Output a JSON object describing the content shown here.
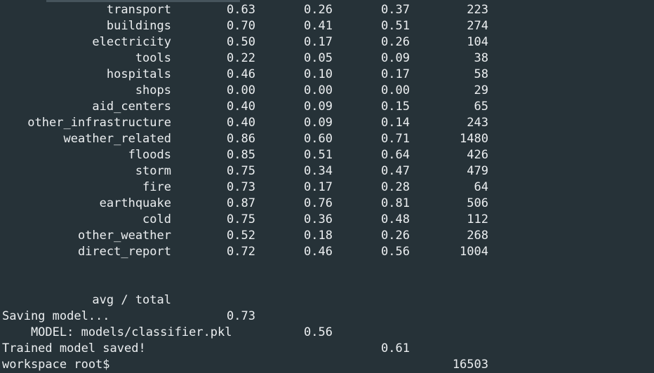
{
  "report": {
    "rows": [
      {
        "label": "transport",
        "precision": "0.63",
        "recall": "0.26",
        "f1": "0.37",
        "support": "223"
      },
      {
        "label": "buildings",
        "precision": "0.70",
        "recall": "0.41",
        "f1": "0.51",
        "support": "274"
      },
      {
        "label": "electricity",
        "precision": "0.50",
        "recall": "0.17",
        "f1": "0.26",
        "support": "104"
      },
      {
        "label": "tools",
        "precision": "0.22",
        "recall": "0.05",
        "f1": "0.09",
        "support": "38"
      },
      {
        "label": "hospitals",
        "precision": "0.46",
        "recall": "0.10",
        "f1": "0.17",
        "support": "58"
      },
      {
        "label": "shops",
        "precision": "0.00",
        "recall": "0.00",
        "f1": "0.00",
        "support": "29"
      },
      {
        "label": "aid_centers",
        "precision": "0.40",
        "recall": "0.09",
        "f1": "0.15",
        "support": "65"
      },
      {
        "label": "other_infrastructure",
        "precision": "0.40",
        "recall": "0.09",
        "f1": "0.14",
        "support": "243"
      },
      {
        "label": "weather_related",
        "precision": "0.86",
        "recall": "0.60",
        "f1": "0.71",
        "support": "1480"
      },
      {
        "label": "floods",
        "precision": "0.85",
        "recall": "0.51",
        "f1": "0.64",
        "support": "426"
      },
      {
        "label": "storm",
        "precision": "0.75",
        "recall": "0.34",
        "f1": "0.47",
        "support": "479"
      },
      {
        "label": "fire",
        "precision": "0.73",
        "recall": "0.17",
        "f1": "0.28",
        "support": "64"
      },
      {
        "label": "earthquake",
        "precision": "0.87",
        "recall": "0.76",
        "f1": "0.81",
        "support": "506"
      },
      {
        "label": "cold",
        "precision": "0.75",
        "recall": "0.36",
        "f1": "0.48",
        "support": "112"
      },
      {
        "label": "other_weather",
        "precision": "0.52",
        "recall": "0.18",
        "f1": "0.26",
        "support": "268"
      },
      {
        "label": "direct_report",
        "precision": "0.72",
        "recall": "0.46",
        "f1": "0.56",
        "support": "1004"
      }
    ],
    "total": {
      "label": "avg / total",
      "precision": "0.73",
      "recall": "0.56",
      "f1": "0.61",
      "support": "16503"
    }
  },
  "log": {
    "saving": "Saving model...",
    "model_path": "    MODEL: models/classifier.pkl",
    "saved": "Trained model saved!"
  },
  "prompt": "workspace root$",
  "colors": {
    "background": "#263238",
    "text": "#eceff1",
    "scrollbar": "#46545c"
  }
}
